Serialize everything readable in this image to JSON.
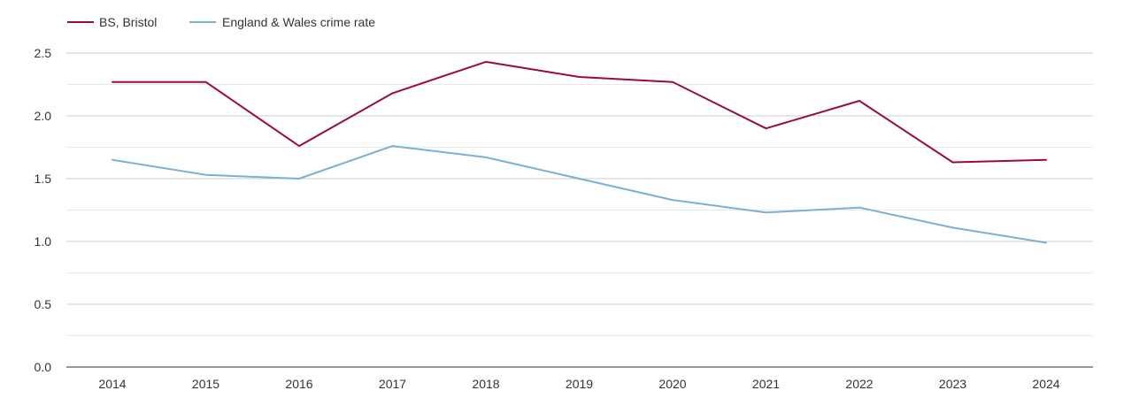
{
  "chart_data": {
    "type": "line",
    "title": "",
    "xlabel": "",
    "ylabel": "",
    "x": [
      2014,
      2015,
      2016,
      2017,
      2018,
      2019,
      2020,
      2021,
      2022,
      2023,
      2024
    ],
    "x_tick_labels": [
      "2014",
      "2015",
      "2016",
      "2017",
      "2018",
      "2019",
      "2020",
      "2021",
      "2022",
      "2023",
      "2024"
    ],
    "ylim": [
      0,
      2.5
    ],
    "y_ticks": [
      0,
      0.5,
      1.0,
      1.5,
      2.0,
      2.5
    ],
    "y_tick_labels": [
      "0.0",
      "0.5",
      "1.0",
      "1.5",
      "2.0",
      "2.5"
    ],
    "grid": true,
    "legend_position": "top-left",
    "series": [
      {
        "name": "BS, Bristol",
        "color": "#9b0c33",
        "values": [
          2.27,
          2.27,
          1.76,
          2.18,
          2.43,
          2.31,
          2.27,
          1.9,
          2.12,
          1.63,
          1.65
        ]
      },
      {
        "name": "England & Wales crime rate",
        "color": "#7bafd4",
        "values": [
          1.65,
          1.53,
          1.5,
          1.76,
          1.67,
          1.5,
          1.33,
          1.23,
          1.27,
          1.11,
          0.99
        ]
      }
    ]
  }
}
